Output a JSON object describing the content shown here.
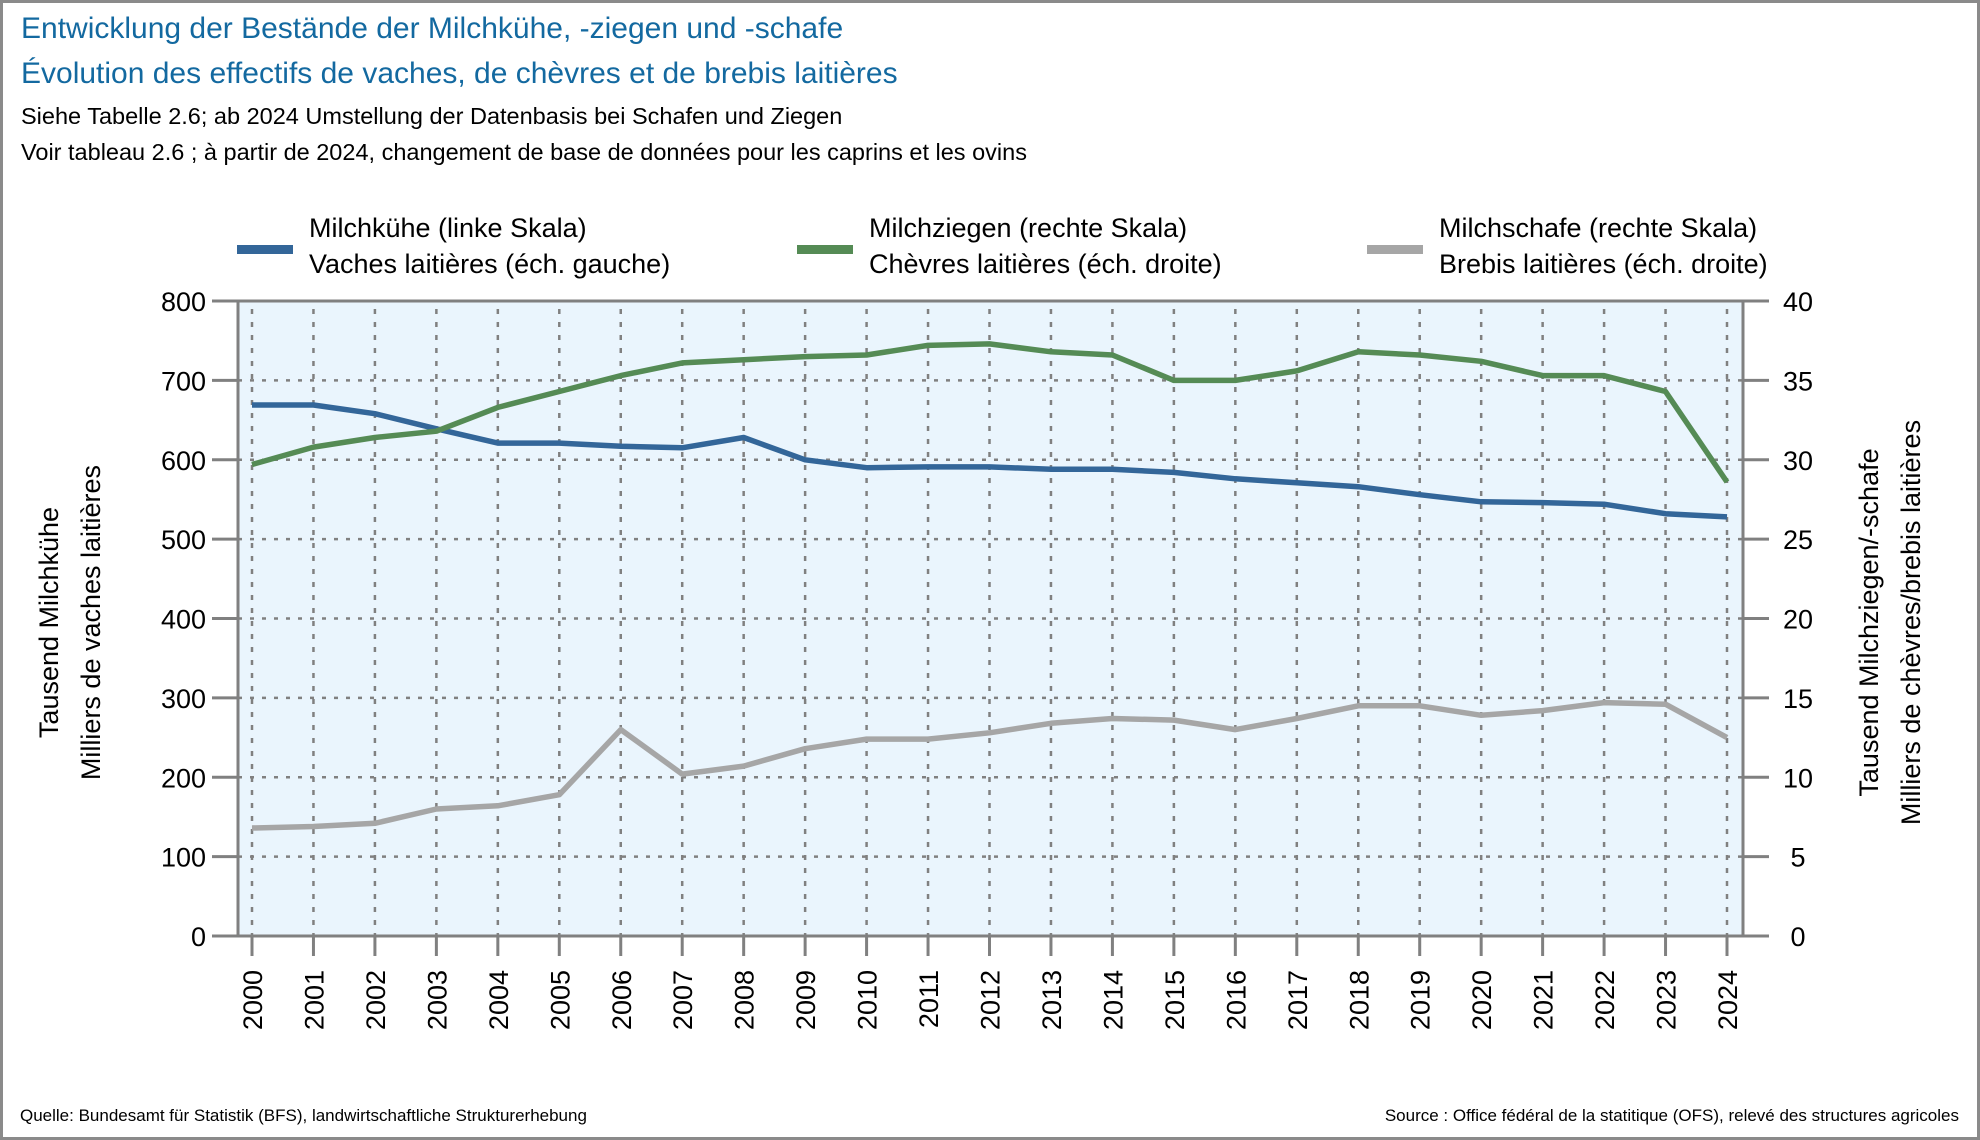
{
  "header": {
    "title_de": "Entwicklung der Bestände der Milchkühe, -ziegen und -schafe",
    "title_fr": "Évolution des effectifs de vaches, de chèvres et de brebis laitières",
    "subtitle_de": "Siehe Tabelle 2.6; ab 2024 Umstellung der Datenbasis bei Schafen und Ziegen",
    "subtitle_fr": "Voir tableau 2.6 ; à partir de 2024, changement de base de données pour les caprins et les ovins"
  },
  "legend": [
    {
      "line1": "Milchkühe (linke Skala)",
      "line2": "Vaches laitières (éch. gauche)",
      "color": "#336699"
    },
    {
      "line1": "Milchziegen (rechte Skala)",
      "line2": "Chèvres laitières (éch. droite)",
      "color": "#558b55"
    },
    {
      "line1": "Milchschafe (rechte Skala)",
      "line2": "Brebis laitières (éch. droite)",
      "color": "#a6a6a6"
    }
  ],
  "footer": {
    "source_de": "Quelle: Bundesamt für Statistik (BFS), landwirtschaftliche Strukturerhebung",
    "source_fr": "Source : Office fédéral de la statitique (OFS), relevé des structures agricoles"
  },
  "chart_data": {
    "type": "line",
    "title": "Entwicklung der Bestände der Milchkühe, -ziegen und -schafe / Évolution des effectifs de vaches, de chèvres et de brebis laitières",
    "x": [
      "2000",
      "2001",
      "2002",
      "2003",
      "2004",
      "2005",
      "2006",
      "2007",
      "2008",
      "2009",
      "2010",
      "2011",
      "2012",
      "2013",
      "2014",
      "2015",
      "2016",
      "2017",
      "2018",
      "2019",
      "2020",
      "2021",
      "2022",
      "2023",
      "2024"
    ],
    "xlabel": "",
    "ylabel_left": [
      "Tausend Milchkühe",
      "Milliers de vaches laitières"
    ],
    "ylabel_right": [
      "Tausend Milchziegen/-schafe",
      "Milliers de chèvres/brebis laitières"
    ],
    "ylim_left": [
      0,
      800
    ],
    "ylim_right": [
      0,
      40
    ],
    "yticks_left": [
      "0",
      "100",
      "200",
      "300",
      "400",
      "500",
      "600",
      "700",
      "800"
    ],
    "yticks_right": [
      "0",
      "5",
      "10",
      "15",
      "20",
      "25",
      "30",
      "35",
      "40"
    ],
    "grid": true,
    "legend_position": "top",
    "background": "#eaf5fd",
    "series": [
      {
        "name": "Milchkühe (linke Skala) / Vaches laitières (éch. gauche)",
        "axis": "left",
        "color": "#336699",
        "values": [
          669,
          669,
          658,
          639,
          621,
          621,
          617,
          615,
          628,
          600,
          590,
          591,
          591,
          588,
          588,
          584,
          576,
          571,
          566,
          556,
          547,
          546,
          544,
          532,
          528
        ]
      },
      {
        "name": "Milchziegen (rechte Skala) / Chèvres laitières (éch. droite)",
        "axis": "right",
        "color": "#558b55",
        "values": [
          29.7,
          30.8,
          31.4,
          31.8,
          33.3,
          34.3,
          35.3,
          36.1,
          36.3,
          36.5,
          36.6,
          37.2,
          37.3,
          36.8,
          36.6,
          35.0,
          35.0,
          35.6,
          36.8,
          36.6,
          36.2,
          35.3,
          35.3,
          34.3,
          28.6
        ]
      },
      {
        "name": "Milchschafe (rechte Skala) / Brebis laitières (éch. droite)",
        "axis": "right",
        "color": "#a6a6a6",
        "values": [
          6.8,
          6.9,
          7.1,
          8.0,
          8.2,
          8.9,
          13.0,
          10.2,
          10.7,
          11.8,
          12.4,
          12.4,
          12.8,
          13.4,
          13.7,
          13.6,
          13.0,
          13.7,
          14.5,
          14.5,
          13.9,
          14.2,
          14.7,
          14.6,
          12.5
        ]
      }
    ]
  }
}
